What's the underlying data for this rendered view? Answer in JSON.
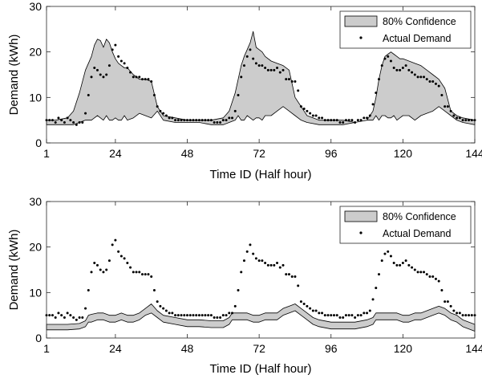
{
  "chart_data": [
    {
      "type": "area",
      "xlabel": "Time ID (Half hour)",
      "ylabel": "Demand (kWh)",
      "xlim": [
        1,
        144
      ],
      "ylim": [
        0,
        30
      ],
      "xticks": [
        1,
        24,
        48,
        72,
        96,
        120,
        144
      ],
      "yticks": [
        0,
        10,
        20,
        30
      ],
      "grid": false,
      "legend_position": "top-right",
      "band_color": "#cccccc",
      "point_color": "#000000",
      "series": [
        {
          "name": "80% Confidence",
          "kind": "band",
          "x": [
            1,
            4,
            8,
            10,
            12,
            14,
            16,
            17,
            18,
            19,
            20,
            21,
            22,
            23,
            24,
            25,
            26,
            27,
            28,
            30,
            32,
            34,
            36,
            38,
            40,
            44,
            48,
            52,
            56,
            60,
            62,
            64,
            65,
            66,
            67,
            68,
            69,
            70,
            71,
            72,
            73,
            74,
            76,
            78,
            80,
            82,
            84,
            86,
            88,
            92,
            96,
            100,
            104,
            108,
            110,
            111,
            112,
            113,
            114,
            115,
            116,
            117,
            118,
            119,
            120,
            122,
            124,
            126,
            128,
            130,
            132,
            134,
            136,
            138,
            140,
            144
          ],
          "lower": [
            4,
            4,
            4,
            4,
            4.5,
            5,
            5,
            5.5,
            6,
            5.5,
            5,
            6,
            5,
            5,
            5.5,
            5,
            5,
            6,
            5,
            5.5,
            6.5,
            6,
            5.5,
            7,
            5,
            4.5,
            4.5,
            4.5,
            4,
            4,
            4.5,
            5,
            6,
            5,
            5,
            6,
            5.5,
            5,
            5.5,
            5.5,
            5,
            6,
            6,
            7,
            8,
            7,
            6,
            5,
            4.5,
            4,
            4,
            4,
            4.5,
            5,
            5,
            6,
            5,
            6,
            6,
            5.5,
            5.5,
            6,
            5,
            5.5,
            6,
            6,
            5,
            6,
            6.5,
            7,
            8,
            7,
            6,
            5,
            4.5,
            4
          ],
          "upper": [
            5,
            5,
            5.5,
            7,
            11,
            16,
            19,
            21.5,
            22.8,
            22.5,
            21,
            22.8,
            22,
            20,
            18.5,
            17.5,
            17,
            16.5,
            16.5,
            15,
            14,
            14,
            13.5,
            8,
            6,
            5.5,
            5,
            5,
            5,
            5.5,
            7,
            11,
            14,
            17,
            19,
            20.5,
            22,
            24.5,
            21,
            20.5,
            20,
            19,
            18,
            17.5,
            17,
            16,
            10,
            8,
            6,
            5,
            5,
            5,
            4.5,
            5,
            7,
            10,
            14,
            17,
            19,
            19.5,
            20,
            19.5,
            19,
            18.5,
            18.5,
            18,
            17.5,
            17,
            16,
            15,
            14,
            12,
            7,
            6,
            5.5,
            5
          ]
        },
        {
          "name": "Actual Demand",
          "kind": "scatter",
          "x": [
            1,
            2,
            3,
            4,
            5,
            6,
            7,
            8,
            9,
            10,
            11,
            12,
            13,
            14,
            15,
            16,
            17,
            18,
            19,
            20,
            21,
            22,
            23,
            24,
            25,
            26,
            27,
            28,
            29,
            30,
            31,
            32,
            33,
            34,
            35,
            36,
            37,
            38,
            39,
            40,
            41,
            42,
            43,
            44,
            45,
            46,
            47,
            48,
            49,
            50,
            51,
            52,
            53,
            54,
            55,
            56,
            57,
            58,
            59,
            60,
            61,
            62,
            63,
            64,
            65,
            66,
            67,
            68,
            69,
            70,
            71,
            72,
            73,
            74,
            75,
            76,
            77,
            78,
            79,
            80,
            81,
            82,
            83,
            84,
            85,
            86,
            87,
            88,
            89,
            90,
            91,
            92,
            93,
            94,
            95,
            96,
            97,
            98,
            99,
            100,
            101,
            102,
            103,
            104,
            105,
            106,
            107,
            108,
            109,
            110,
            111,
            112,
            113,
            114,
            115,
            116,
            117,
            118,
            119,
            120,
            121,
            122,
            123,
            124,
            125,
            126,
            127,
            128,
            129,
            130,
            131,
            132,
            133,
            134,
            135,
            136,
            137,
            138,
            139,
            140,
            141,
            142,
            143,
            144
          ],
          "y": [
            5,
            5,
            5,
            4.5,
            5.5,
            5,
            4.5,
            5.5,
            5,
            4.5,
            4,
            4.5,
            4.5,
            6.5,
            10.5,
            14.5,
            16.5,
            16,
            15,
            14.5,
            15,
            17,
            20.5,
            21.5,
            19,
            18,
            17.5,
            16.5,
            15.5,
            14.5,
            14.5,
            14.5,
            14,
            14,
            14,
            13.5,
            10.5,
            8,
            7,
            6.5,
            6,
            5.5,
            5.5,
            5,
            5,
            5,
            5,
            5,
            5,
            5,
            5,
            5,
            5,
            5,
            5,
            5,
            4.5,
            4.5,
            4.5,
            5,
            5,
            5.5,
            5.5,
            7,
            10.5,
            14.5,
            17,
            19,
            20.5,
            18.5,
            17.5,
            17,
            17,
            16.5,
            16,
            16,
            16,
            16.5,
            15.5,
            16,
            14,
            14,
            13.5,
            13.5,
            11.5,
            8,
            7.5,
            7,
            6.5,
            6,
            6,
            5.5,
            5.5,
            5,
            5,
            5,
            5,
            5,
            4.5,
            4.5,
            5,
            5,
            5,
            4.5,
            5,
            5,
            5.5,
            5.5,
            6,
            8.5,
            11,
            14,
            17,
            18.5,
            19,
            18,
            16.5,
            16,
            16,
            16.5,
            17,
            16,
            15.5,
            15,
            14.5,
            14.5,
            14.5,
            14,
            13.5,
            13.5,
            13,
            12.5,
            10.5,
            8,
            8,
            7,
            6,
            5.5,
            5.5,
            5,
            5,
            5,
            5,
            5
          ]
        }
      ]
    },
    {
      "type": "area",
      "xlabel": "Time ID (Half hour)",
      "ylabel": "Demand (kWh)",
      "xlim": [
        1,
        144
      ],
      "ylim": [
        0,
        30
      ],
      "xticks": [
        1,
        24,
        48,
        72,
        96,
        120,
        144
      ],
      "yticks": [
        0,
        10,
        20,
        30
      ],
      "grid": false,
      "legend_position": "top-right",
      "band_color": "#cccccc",
      "point_color": "#000000",
      "series": [
        {
          "name": "80% Confidence",
          "kind": "band",
          "x": [
            1,
            4,
            8,
            12,
            14,
            15,
            16,
            18,
            20,
            22,
            24,
            26,
            28,
            30,
            32,
            34,
            36,
            38,
            40,
            44,
            48,
            52,
            56,
            60,
            62,
            63,
            64,
            66,
            68,
            70,
            72,
            74,
            76,
            78,
            80,
            82,
            84,
            86,
            88,
            90,
            92,
            96,
            100,
            104,
            108,
            110,
            111,
            112,
            114,
            116,
            118,
            120,
            122,
            124,
            126,
            128,
            130,
            132,
            134,
            136,
            138,
            140,
            144
          ],
          "lower": [
            1.8,
            1.8,
            1.8,
            2,
            2.5,
            3.5,
            3.5,
            4,
            4,
            3.5,
            3.5,
            4,
            3.5,
            3.5,
            4,
            5,
            5.5,
            4.5,
            3.5,
            3,
            2.5,
            2.5,
            2.3,
            2.3,
            3,
            4,
            4,
            4,
            4,
            3.5,
            3.5,
            4,
            4,
            4,
            5,
            5.5,
            6,
            5,
            4,
            3,
            2.5,
            2,
            2,
            2,
            2.5,
            3,
            4,
            4,
            4,
            4,
            4,
            3.5,
            3.5,
            4,
            4,
            4.5,
            5,
            5.5,
            5,
            4,
            3.5,
            2.5,
            1.5
          ],
          "upper": [
            3,
            3,
            3,
            3.2,
            3.8,
            5,
            5.2,
            5.5,
            5.5,
            5,
            5,
            5.5,
            5,
            5,
            5.5,
            6.5,
            7.5,
            6,
            5,
            4.5,
            4,
            4,
            3.8,
            3.8,
            4.5,
            5.5,
            5.5,
            5.5,
            5.5,
            5,
            5,
            5.5,
            5.5,
            5.5,
            6.5,
            7,
            7.5,
            6.5,
            5.5,
            4.5,
            4,
            3.5,
            3.5,
            3.5,
            4,
            4.5,
            5.5,
            5.5,
            5.5,
            5.5,
            5.5,
            5,
            5,
            5.5,
            5.5,
            6,
            6.5,
            7,
            6.5,
            5.5,
            5,
            4,
            3
          ]
        },
        {
          "name": "Actual Demand",
          "kind": "scatter",
          "x": [
            1,
            2,
            3,
            4,
            5,
            6,
            7,
            8,
            9,
            10,
            11,
            12,
            13,
            14,
            15,
            16,
            17,
            18,
            19,
            20,
            21,
            22,
            23,
            24,
            25,
            26,
            27,
            28,
            29,
            30,
            31,
            32,
            33,
            34,
            35,
            36,
            37,
            38,
            39,
            40,
            41,
            42,
            43,
            44,
            45,
            46,
            47,
            48,
            49,
            50,
            51,
            52,
            53,
            54,
            55,
            56,
            57,
            58,
            59,
            60,
            61,
            62,
            63,
            64,
            65,
            66,
            67,
            68,
            69,
            70,
            71,
            72,
            73,
            74,
            75,
            76,
            77,
            78,
            79,
            80,
            81,
            82,
            83,
            84,
            85,
            86,
            87,
            88,
            89,
            90,
            91,
            92,
            93,
            94,
            95,
            96,
            97,
            98,
            99,
            100,
            101,
            102,
            103,
            104,
            105,
            106,
            107,
            108,
            109,
            110,
            111,
            112,
            113,
            114,
            115,
            116,
            117,
            118,
            119,
            120,
            121,
            122,
            123,
            124,
            125,
            126,
            127,
            128,
            129,
            130,
            131,
            132,
            133,
            134,
            135,
            136,
            137,
            138,
            139,
            140,
            141,
            142,
            143,
            144
          ],
          "y": [
            5,
            5,
            5,
            4.5,
            5.5,
            5,
            4.5,
            5.5,
            5,
            4.5,
            4,
            4.5,
            4.5,
            6.5,
            10.5,
            14.5,
            16.5,
            16,
            15,
            14.5,
            15,
            17,
            20.5,
            21.5,
            19,
            18,
            17.5,
            16.5,
            15.5,
            14.5,
            14.5,
            14.5,
            14,
            14,
            14,
            13.5,
            10.5,
            8,
            7,
            6.5,
            6,
            5.5,
            5.5,
            5,
            5,
            5,
            5,
            5,
            5,
            5,
            5,
            5,
            5,
            5,
            5,
            5,
            4.5,
            4.5,
            4.5,
            5,
            5,
            5.5,
            5.5,
            7,
            10.5,
            14.5,
            17,
            19,
            20.5,
            18.5,
            17.5,
            17,
            17,
            16.5,
            16,
            16,
            16,
            16.5,
            15.5,
            16,
            14,
            14,
            13.5,
            13.5,
            11.5,
            8,
            7.5,
            7,
            6.5,
            6,
            6,
            5.5,
            5.5,
            5,
            5,
            5,
            5,
            5,
            4.5,
            4.5,
            5,
            5,
            5,
            4.5,
            5,
            5,
            5.5,
            5.5,
            6,
            8.5,
            11,
            14,
            17,
            18.5,
            19,
            18,
            16.5,
            16,
            16,
            16.5,
            17,
            16,
            15.5,
            15,
            14.5,
            14.5,
            14.5,
            14,
            13.5,
            13.5,
            13,
            12.5,
            10.5,
            8,
            8,
            7,
            6,
            5.5,
            5.5,
            5,
            5,
            5,
            5,
            5
          ]
        }
      ]
    }
  ]
}
